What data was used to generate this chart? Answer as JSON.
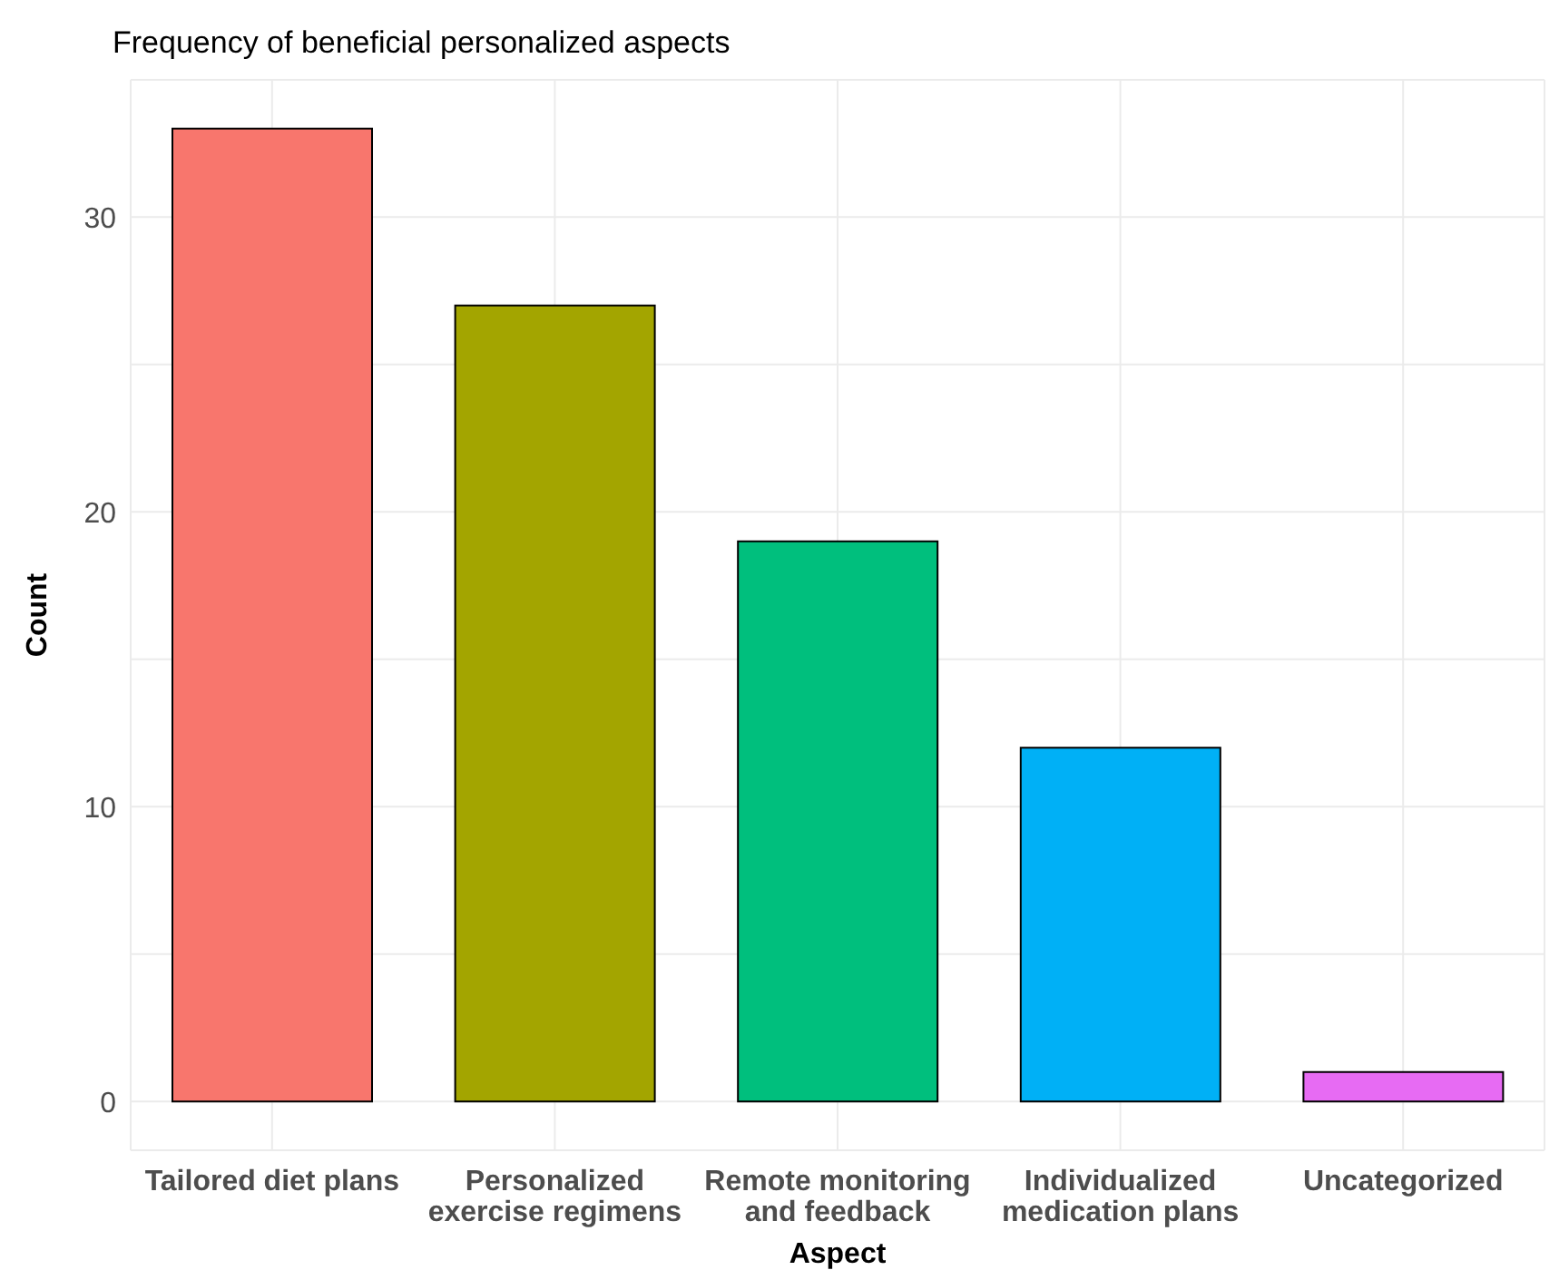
{
  "chart_data": {
    "type": "bar",
    "title": "Frequency of beneficial personalized aspects",
    "xlabel": "Aspect",
    "ylabel": "Count",
    "categories": [
      "Tailored diet plans",
      "Personalized exercise regimens",
      "Remote monitoring and feedback",
      "Individualized medication plans",
      "Uncategorized"
    ],
    "values": [
      33,
      27,
      19,
      12,
      1
    ],
    "colors": [
      "#f8766d",
      "#a3a500",
      "#00bf7d",
      "#00b0f6",
      "#e76bf3"
    ],
    "ylim": [
      -1.65,
      34.65
    ],
    "yticks": [
      0,
      {
        "value": 5,
        "label": null
      },
      10,
      {
        "value": 15,
        "label": null
      },
      20,
      {
        "value": 25,
        "label": null
      },
      30
    ],
    "grid": true,
    "legend": false
  }
}
